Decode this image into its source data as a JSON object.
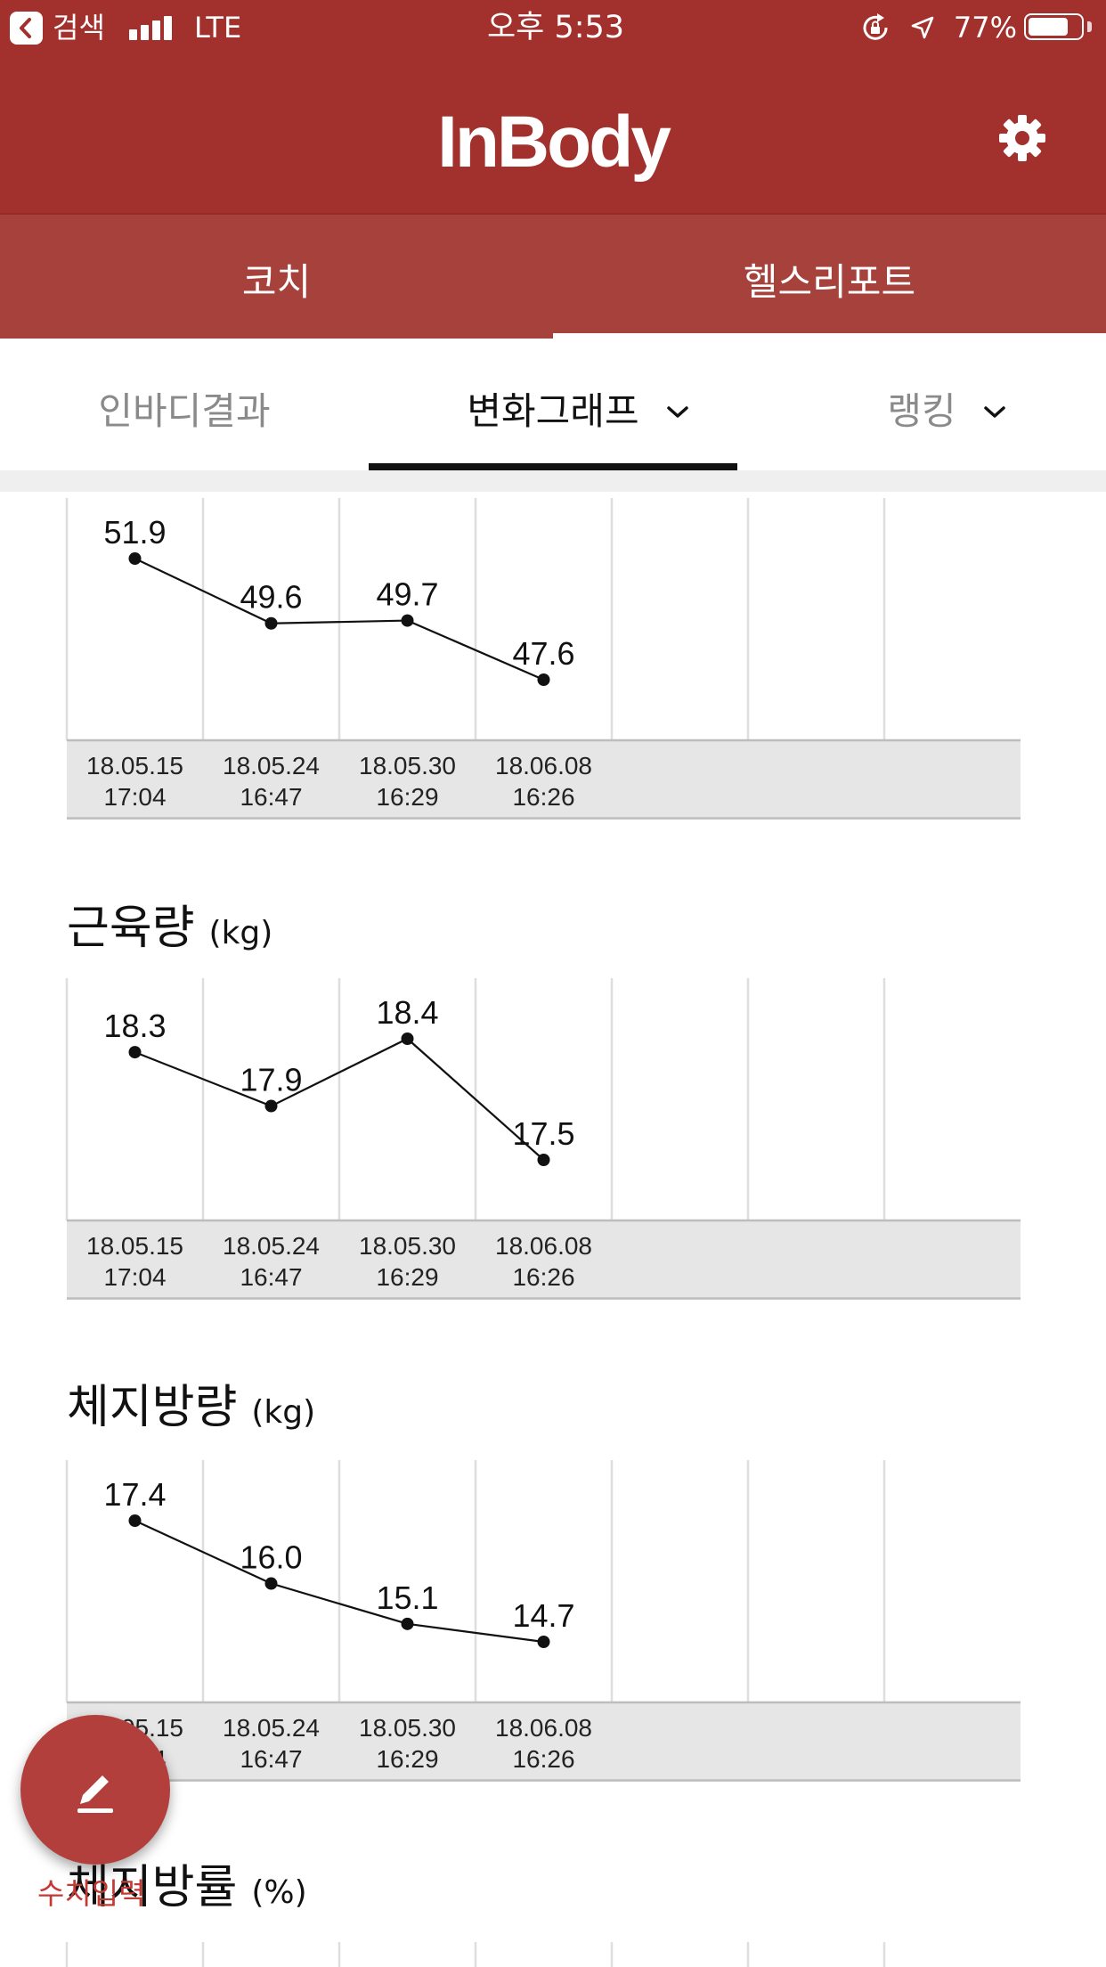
{
  "status_bar": {
    "back_label": "검색",
    "network": "LTE",
    "time": "오후 5:53",
    "battery": "77%",
    "icons": [
      "back-chevron-icon",
      "signal-bars-icon",
      "orientation-lock-icon",
      "location-arrow-icon",
      "battery-icon"
    ]
  },
  "header": {
    "logo": "InBody",
    "settings_icon": "gear-icon"
  },
  "colors": {
    "header": "#a2302c",
    "tab_bar": "#a6413c",
    "accent": "#b23f3b",
    "fab_label": "#c23a33"
  },
  "tabs": [
    {
      "label": "코치",
      "active": false
    },
    {
      "label": "헬스리포트",
      "active": true
    }
  ],
  "subtabs": [
    {
      "label": "인바디결과",
      "active": false,
      "dropdown": false
    },
    {
      "label": "변화그래프",
      "active": true,
      "dropdown": true
    },
    {
      "label": "랭킹",
      "active": false,
      "dropdown": true
    }
  ],
  "chart_data": [
    {
      "type": "line",
      "title": "",
      "unit": "",
      "categories": [
        {
          "date": "18.05.15",
          "time": "17:04"
        },
        {
          "date": "18.05.24",
          "time": "16:47"
        },
        {
          "date": "18.05.30",
          "time": "16:29"
        },
        {
          "date": "18.06.08",
          "time": "16:26"
        }
      ],
      "values": [
        51.9,
        49.6,
        49.7,
        47.6
      ]
    },
    {
      "type": "line",
      "title": "근육량",
      "unit": "(kg)",
      "categories": [
        {
          "date": "18.05.15",
          "time": "17:04"
        },
        {
          "date": "18.05.24",
          "time": "16:47"
        },
        {
          "date": "18.05.30",
          "time": "16:29"
        },
        {
          "date": "18.06.08",
          "time": "16:26"
        }
      ],
      "values": [
        18.3,
        17.9,
        18.4,
        17.5
      ]
    },
    {
      "type": "line",
      "title": "체지방량",
      "unit": "(kg)",
      "categories": [
        {
          "date": "18.05.15",
          "time": "17:04"
        },
        {
          "date": "18.05.24",
          "time": "16:47"
        },
        {
          "date": "18.05.30",
          "time": "16:29"
        },
        {
          "date": "18.06.08",
          "time": "16:26"
        }
      ],
      "values": [
        17.4,
        16.0,
        15.1,
        14.7
      ]
    },
    {
      "type": "line",
      "title": "체지방률",
      "unit": "(%)",
      "categories": [],
      "values": []
    }
  ],
  "fab": {
    "label": "수치입력",
    "icon": "pencil-icon"
  }
}
